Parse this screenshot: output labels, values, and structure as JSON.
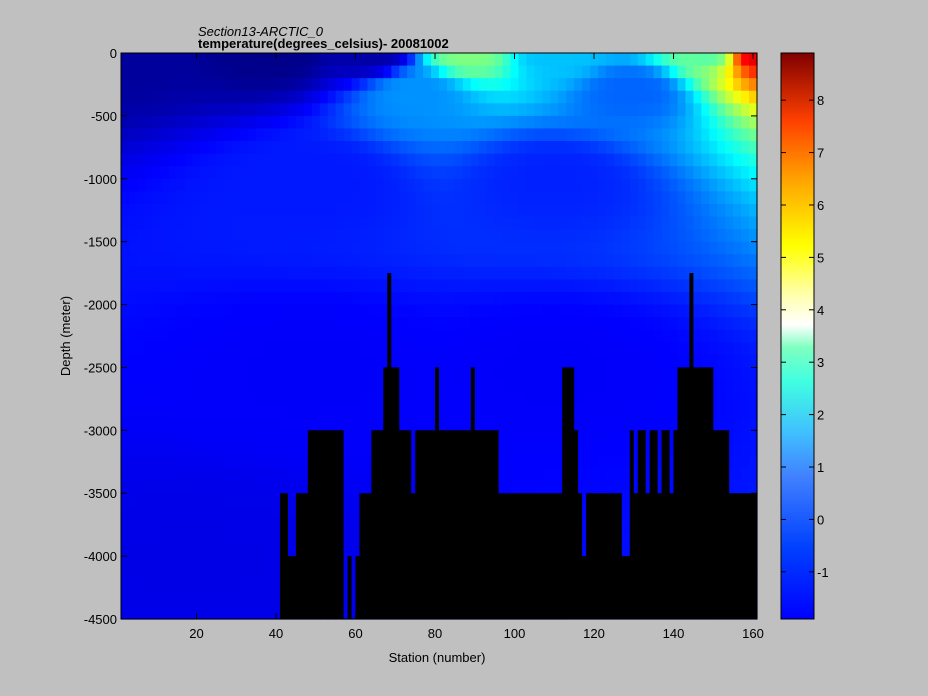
{
  "chart_data": {
    "type": "heatmap",
    "title": "Section13-ARCTIC_0",
    "subtitle": "temperature(degrees_celsius)- 20081002",
    "xlabel": "Station (number)",
    "ylabel": "Depth (meter)",
    "xlim": [
      1,
      161
    ],
    "ylim": [
      -4500,
      0
    ],
    "x_ticks": [
      "20",
      "40",
      "60",
      "80",
      "100",
      "120",
      "140",
      "160"
    ],
    "y_ticks": [
      "0",
      "-500",
      "-1000",
      "-1500",
      "-2000",
      "-2500",
      "-3000",
      "-3500",
      "-4000",
      "-4500"
    ],
    "colorbar": {
      "range": [
        -1.9,
        8.9
      ],
      "ticks": [
        "-1",
        "0",
        "1",
        "2",
        "3",
        "4",
        "5",
        "6",
        "7",
        "8"
      ],
      "colormap": "jet"
    },
    "no_data_color": "#000000",
    "grid": false,
    "bottom_depth_profile": [
      [
        1,
        -4500
      ],
      [
        40,
        -4500
      ],
      [
        41,
        -3500
      ],
      [
        42,
        -3500
      ],
      [
        43,
        -4000
      ],
      [
        44,
        -4000
      ],
      [
        45,
        -3500
      ],
      [
        47,
        -3500
      ],
      [
        48,
        -3000
      ],
      [
        56,
        -3000
      ],
      [
        57,
        -4500
      ],
      [
        58,
        -4000
      ],
      [
        59,
        -4500
      ],
      [
        60,
        -4000
      ],
      [
        61,
        -3500
      ],
      [
        63,
        -3500
      ],
      [
        64,
        -3000
      ],
      [
        66,
        -3000
      ],
      [
        67,
        -2500
      ],
      [
        68,
        -1750
      ],
      [
        69,
        -2500
      ],
      [
        70,
        -2500
      ],
      [
        71,
        -3000
      ],
      [
        73,
        -3000
      ],
      [
        74,
        -3500
      ],
      [
        75,
        -3000
      ],
      [
        79,
        -3000
      ],
      [
        80,
        -2500
      ],
      [
        81,
        -3000
      ],
      [
        88,
        -3000
      ],
      [
        89,
        -2500
      ],
      [
        90,
        -3000
      ],
      [
        95,
        -3000
      ],
      [
        96,
        -3500
      ],
      [
        111,
        -3500
      ],
      [
        112,
        -2500
      ],
      [
        115,
        -3000
      ],
      [
        116,
        -3500
      ],
      [
        117,
        -4000
      ],
      [
        118,
        -3500
      ],
      [
        126,
        -3500
      ],
      [
        127,
        -4000
      ],
      [
        129,
        -3000
      ],
      [
        130,
        -3500
      ],
      [
        131,
        -3000
      ],
      [
        133,
        -3500
      ],
      [
        134,
        -3000
      ],
      [
        136,
        -3500
      ],
      [
        137,
        -3000
      ],
      [
        139,
        -3500
      ],
      [
        140,
        -3000
      ],
      [
        141,
        -2500
      ],
      [
        143,
        -2500
      ],
      [
        144,
        -1750
      ],
      [
        145,
        -2500
      ],
      [
        149,
        -2500
      ],
      [
        150,
        -3000
      ],
      [
        153,
        -3000
      ],
      [
        154,
        -3500
      ],
      [
        161,
        -3500
      ]
    ],
    "temperature_field_description_points": [
      {
        "station": 1,
        "depth": 0,
        "temp": -1.6
      },
      {
        "station": 40,
        "depth": 0,
        "temp": -1.8
      },
      {
        "station": 64,
        "depth": 0,
        "temp": -1.5
      },
      {
        "station": 88,
        "depth": 0,
        "temp": 3.5
      },
      {
        "station": 110,
        "depth": 0,
        "temp": 1.5
      },
      {
        "station": 150,
        "depth": 0,
        "temp": 3.0
      },
      {
        "station": 160,
        "depth": 0,
        "temp": 8.0
      },
      {
        "station": 75,
        "depth": -300,
        "temp": 1.0
      },
      {
        "station": 130,
        "depth": -300,
        "temp": 0.5
      },
      {
        "station": 50,
        "depth": -1000,
        "temp": -0.3
      },
      {
        "station": 110,
        "depth": -1000,
        "temp": -0.2
      },
      {
        "station": 50,
        "depth": -2500,
        "temp": -0.6
      },
      {
        "station": 110,
        "depth": -2500,
        "temp": -0.6
      },
      {
        "station": 20,
        "depth": -4000,
        "temp": -0.8
      }
    ]
  }
}
